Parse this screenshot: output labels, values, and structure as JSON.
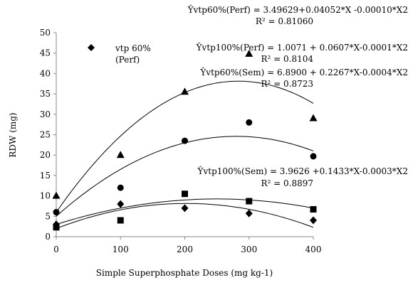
{
  "chart_data": {
    "type": "scatter",
    "xlabel": "Simple Superphosphate Doses (mg kg-1)",
    "ylabel": "RDW (mg)",
    "xlim": [
      0,
      400
    ],
    "ylim": [
      0,
      50
    ],
    "x_ticks": [
      0,
      100,
      200,
      300,
      400
    ],
    "y_ticks": [
      0,
      5,
      10,
      15,
      20,
      25,
      30,
      35,
      40,
      45,
      50
    ],
    "x_tick_labels": [
      "0",
      "100",
      "200",
      "300",
      "400"
    ],
    "y_tick_labels": [
      "0",
      "5",
      "10",
      "15",
      "20",
      "25",
      "30",
      "35",
      "40",
      "45",
      "50"
    ],
    "grid": false,
    "legend": {
      "position": "top-left",
      "entries": [
        {
          "marker": "diamond",
          "label_line1": "vtp 60%",
          "label_line2": "(Perf)"
        }
      ]
    },
    "series": [
      {
        "marker": "triangle",
        "x": [
          0,
          100,
          200,
          300,
          400
        ],
        "y": [
          10,
          20,
          35.5,
          44.8,
          29
        ],
        "fit": {
          "a": 6.0,
          "b": 0.2267,
          "c": -0.0004
        }
      },
      {
        "marker": "circle",
        "x": [
          0,
          100,
          200,
          300,
          400
        ],
        "y": [
          6,
          12,
          23.5,
          28,
          19.7
        ],
        "fit": {
          "a": 5.0,
          "b": 0.14,
          "c": -0.00025
        }
      },
      {
        "marker": "square",
        "x": [
          0,
          100,
          200,
          300,
          400
        ],
        "y": [
          2.3,
          4,
          10.5,
          8.7,
          6.7
        ],
        "fit": {
          "a": 3.0,
          "b": 0.05,
          "c": -0.0001
        }
      },
      {
        "marker": "diamond",
        "x": [
          0,
          100,
          200,
          300,
          400
        ],
        "y": [
          3,
          8,
          7,
          5.7,
          4
        ],
        "fit": {
          "a": 2.0,
          "b": 0.0607,
          "c": -0.00015
        }
      }
    ],
    "annotations": [
      {
        "id": "eq1",
        "equation": "Ŷvtp60%(Perf) = 3.49629+0.04052*X -0.00010*X2",
        "r2": "R² = 0.81060"
      },
      {
        "id": "eq2",
        "equation": "Ŷvtp100%(Perf) = 1.0071 + 0.0607*X-0.0001*X2",
        "r2": "R² = 0.8104"
      },
      {
        "id": "eq3",
        "equation": "Ŷvtp60%(Sem) = 6.8900 + 0.2267*X-0.0004*X2",
        "r2": "R² = 0.8723"
      },
      {
        "id": "eq4",
        "equation": "Ŷvtp100%(Sem) = 3.9626 +0.1433*X-0.0003*X2",
        "r2": "R² = 0.8897"
      }
    ]
  }
}
